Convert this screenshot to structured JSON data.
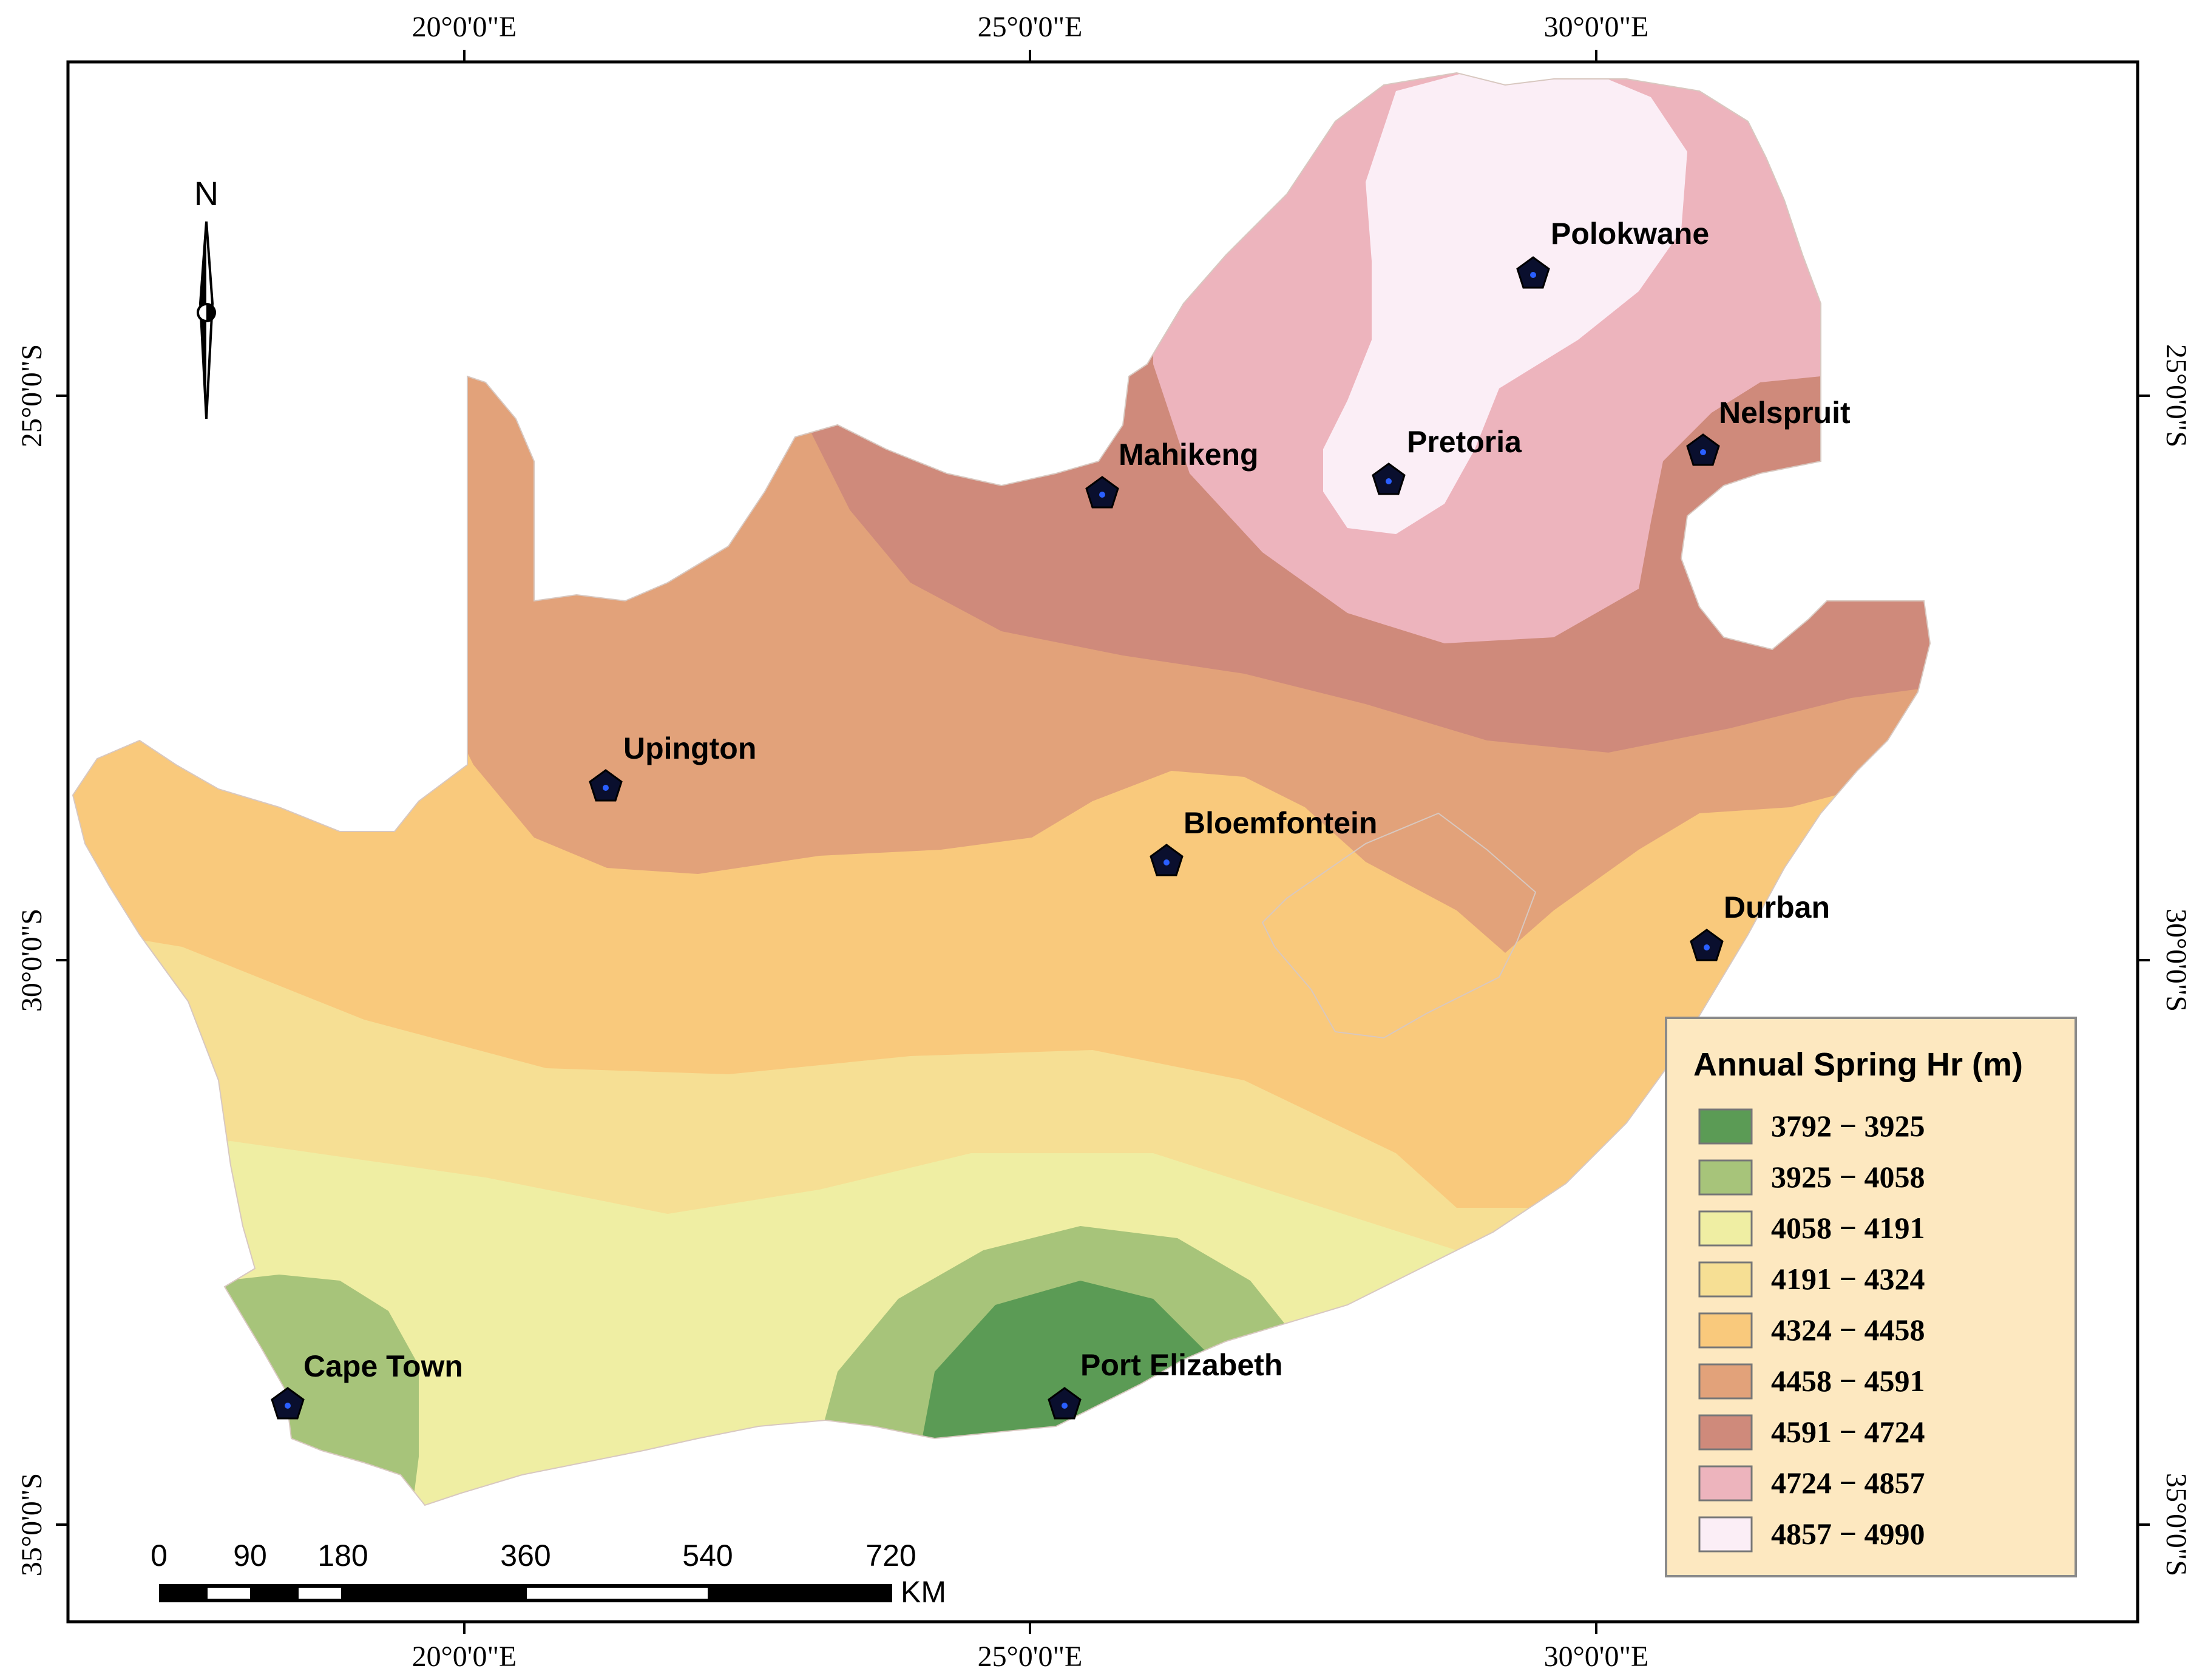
{
  "map": {
    "legend": {
      "title": "Annual Spring Hr (m)",
      "classes": [
        {
          "label": "3792 − 3925",
          "color": "#5b9b55"
        },
        {
          "label": "3925 − 4058",
          "color": "#a7c47a"
        },
        {
          "label": "4058 − 4191",
          "color": "#efeea3"
        },
        {
          "label": "4191 − 4324",
          "color": "#f6df94"
        },
        {
          "label": "4324 − 4458",
          "color": "#f9c97c"
        },
        {
          "label": "4458 − 4591",
          "color": "#e2a27a"
        },
        {
          "label": "4591 − 4724",
          "color": "#cf8a7b"
        },
        {
          "label": "4724 − 4857",
          "color": "#edb4bd"
        },
        {
          "label": "4857 − 4990",
          "color": "#fbeef6"
        }
      ]
    },
    "cities": [
      {
        "name": "Polokwane"
      },
      {
        "name": "Pretoria"
      },
      {
        "name": "Nelspruit"
      },
      {
        "name": "Mahikeng"
      },
      {
        "name": "Upington"
      },
      {
        "name": "Bloemfontein"
      },
      {
        "name": "Durban"
      },
      {
        "name": "Cape Town"
      },
      {
        "name": "Port Elizabeth"
      }
    ],
    "longitude_labels": [
      "20°0'0\"E",
      "25°0'0\"E",
      "30°0'0\"E"
    ],
    "latitude_labels": [
      "25°0'0\"S",
      "30°0'0\"S",
      "35°0'0\"S"
    ],
    "north_arrow": {
      "label": "N"
    },
    "scale_bar": {
      "ticks": [
        "0",
        "90",
        "180",
        "360",
        "540",
        "720"
      ],
      "unit": "KM"
    },
    "colors": {
      "frame": "#000000",
      "legend_background": "#fde8c0",
      "legend_border": "#8a8a8a",
      "marker": "#0a0f2e",
      "marker_dot": "#2a5fff"
    }
  }
}
